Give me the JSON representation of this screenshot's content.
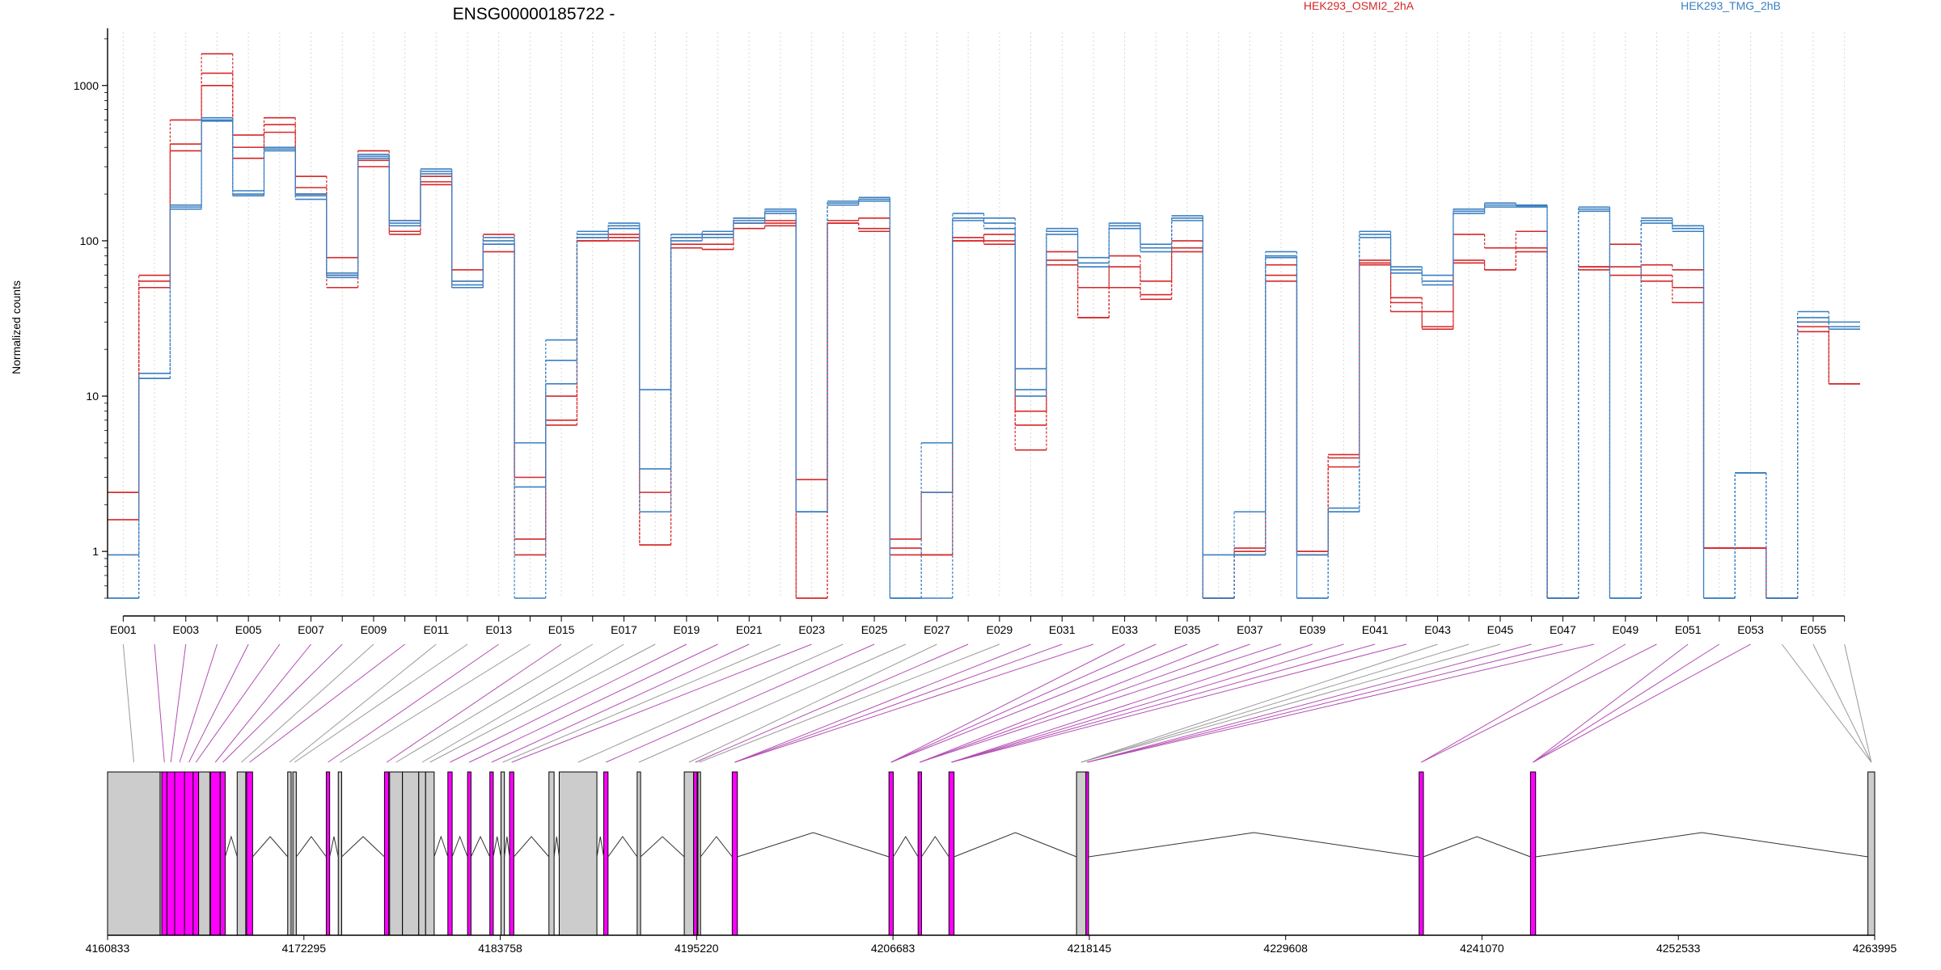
{
  "chart_data": {
    "type": "line",
    "title": "ENSG00000185722 -",
    "xlabel": "",
    "ylabel": "Normalized counts",
    "y_scale": "log",
    "ylim": [
      0.5,
      2200
    ],
    "y_ticks": [
      1,
      10,
      100,
      1000
    ],
    "y_tick_labels": [
      "1",
      "10",
      "100",
      "1000"
    ],
    "grid": "vertical dotted lines at each exon",
    "legend": [
      {
        "name": "HEK293_OSMI2_2hA",
        "color": "#d62728",
        "placement": "top-center"
      },
      {
        "name": "HEK293_TMG_2hB",
        "color": "#3a7fc1",
        "placement": "top-right"
      }
    ],
    "exons": [
      "E001",
      "E002",
      "E003",
      "E004",
      "E005",
      "E006",
      "E007",
      "E008",
      "E009",
      "E010",
      "E011",
      "E012",
      "E013",
      "E014",
      "E015",
      "E016",
      "E017",
      "E018",
      "E019",
      "E020",
      "E021",
      "E022",
      "E023",
      "E024",
      "E025",
      "E026",
      "E027",
      "E028",
      "E029",
      "E030",
      "E031",
      "E032",
      "E033",
      "E034",
      "E035",
      "E036",
      "E037",
      "E038",
      "E039",
      "E040",
      "E041",
      "E042",
      "E043",
      "E044",
      "E045",
      "E046",
      "E047",
      "E048",
      "E049",
      "E050",
      "E051",
      "E052",
      "E053",
      "E054",
      "E055",
      "E056"
    ],
    "exon_tick_labels": [
      "E001",
      "E003",
      "E005",
      "E007",
      "E009",
      "E011",
      "E013",
      "E015",
      "E017",
      "E019",
      "E021",
      "E023",
      "E025",
      "E027",
      "E029",
      "E031",
      "E033",
      "E035",
      "E037",
      "E039",
      "E041",
      "E043",
      "E045",
      "E047",
      "E049",
      "E051",
      "E053",
      "E055"
    ],
    "series": [
      {
        "name": "HEK293_OSMI2_2hA",
        "group": "HEK293_OSMI2_2hA",
        "values": [
          2.4,
          60,
          600,
          1600,
          480,
          620,
          260,
          78,
          380,
          135,
          260,
          65,
          110,
          3,
          10,
          105,
          110,
          2.4,
          105,
          110,
          140,
          135,
          2.9,
          135,
          140,
          1.2,
          2.4,
          100,
          110,
          8,
          85,
          50,
          80,
          55,
          100,
          0.5,
          1,
          70,
          1,
          4,
          75,
          40,
          35,
          110,
          90,
          115,
          0.5,
          68,
          95,
          70,
          65,
          1.05,
          1.05,
          0.5,
          30,
          12
        ]
      },
      {
        "name": "HEK293_OSMI2_2hA",
        "group": "HEK293_OSMI2_2hA",
        "values": [
          1.6,
          55,
          420,
          1200,
          400,
          560,
          220,
          60,
          330,
          115,
          240,
          55,
          95,
          1.2,
          7,
          100,
          105,
          1.1,
          95,
          95,
          130,
          130,
          0.5,
          130,
          120,
          0.95,
          0.95,
          105,
          100,
          4.5,
          75,
          32,
          68,
          42,
          90,
          0.5,
          0.95,
          60,
          0.95,
          3.5,
          70,
          35,
          28,
          75,
          65,
          90,
          0.5,
          65,
          68,
          60,
          50,
          1.05,
          1.05,
          0.5,
          28,
          12
        ]
      },
      {
        "name": "HEK293_OSMI2_2hA",
        "group": "HEK293_OSMI2_2hA",
        "values": [
          2.4,
          50,
          380,
          1000,
          340,
          500,
          200,
          50,
          300,
          110,
          230,
          50,
          85,
          0.95,
          6.5,
          100,
          100,
          1.1,
          90,
          88,
          120,
          125,
          0.5,
          130,
          115,
          1.05,
          0.95,
          100,
          95,
          6.5,
          70,
          32,
          50,
          45,
          85,
          0.5,
          1.05,
          55,
          1,
          4.2,
          72,
          43,
          27,
          72,
          65,
          85,
          0.5,
          68,
          60,
          55,
          40,
          1.05,
          1.05,
          0.5,
          26,
          12
        ]
      },
      {
        "name": "HEK293_TMG_2hB",
        "group": "HEK293_TMG_2hB",
        "values": [
          0.95,
          14,
          170,
          620,
          210,
          400,
          200,
          62,
          360,
          135,
          290,
          55,
          105,
          5,
          23,
          115,
          130,
          11,
          110,
          115,
          140,
          160,
          1.8,
          180,
          190,
          0.5,
          5,
          150,
          140,
          15,
          120,
          78,
          130,
          95,
          145,
          0.95,
          1.8,
          85,
          0.5,
          1.9,
          115,
          68,
          60,
          160,
          175,
          170,
          0.5,
          165,
          0.5,
          140,
          125,
          0.5,
          3.2,
          0.5,
          35,
          30
        ]
      },
      {
        "name": "HEK293_TMG_2hB",
        "group": "HEK293_TMG_2hB",
        "values": [
          0.5,
          13,
          165,
          600,
          200,
          390,
          195,
          60,
          350,
          130,
          280,
          52,
          100,
          2.6,
          17,
          110,
          125,
          1.8,
          105,
          110,
          135,
          155,
          1.8,
          175,
          185,
          0.5,
          2.4,
          140,
          130,
          11,
          115,
          72,
          125,
          90,
          140,
          0.5,
          0.95,
          80,
          0.95,
          1.8,
          110,
          65,
          55,
          155,
          170,
          168,
          0.5,
          160,
          0.5,
          135,
          120,
          0.5,
          3.2,
          0.5,
          32,
          28
        ]
      },
      {
        "name": "HEK293_TMG_2hB",
        "group": "HEK293_TMG_2hB",
        "values": [
          0.5,
          13,
          160,
          590,
          195,
          380,
          185,
          58,
          340,
          125,
          270,
          50,
          95,
          0.5,
          12,
          105,
          120,
          3.4,
          100,
          105,
          130,
          150,
          1.8,
          170,
          180,
          0.5,
          0.5,
          135,
          120,
          10,
          110,
          68,
          120,
          85,
          135,
          0.5,
          0.95,
          78,
          0.5,
          1.8,
          105,
          62,
          52,
          150,
          165,
          165,
          0.5,
          155,
          0.5,
          130,
          115,
          0.5,
          3.2,
          0.5,
          30,
          27
        ]
      }
    ],
    "gene_model": {
      "coordinate_ticks": [
        "4160833",
        "4172295",
        "4183758",
        "4195220",
        "4206683",
        "4218145",
        "4229608",
        "4241070",
        "4252533",
        "4263995"
      ],
      "range": [
        4160833,
        4263995
      ],
      "exon_colors": {
        "plain": "#cccccc",
        "highlighted": "#ff00ff",
        "outline": "#000000"
      }
    }
  }
}
